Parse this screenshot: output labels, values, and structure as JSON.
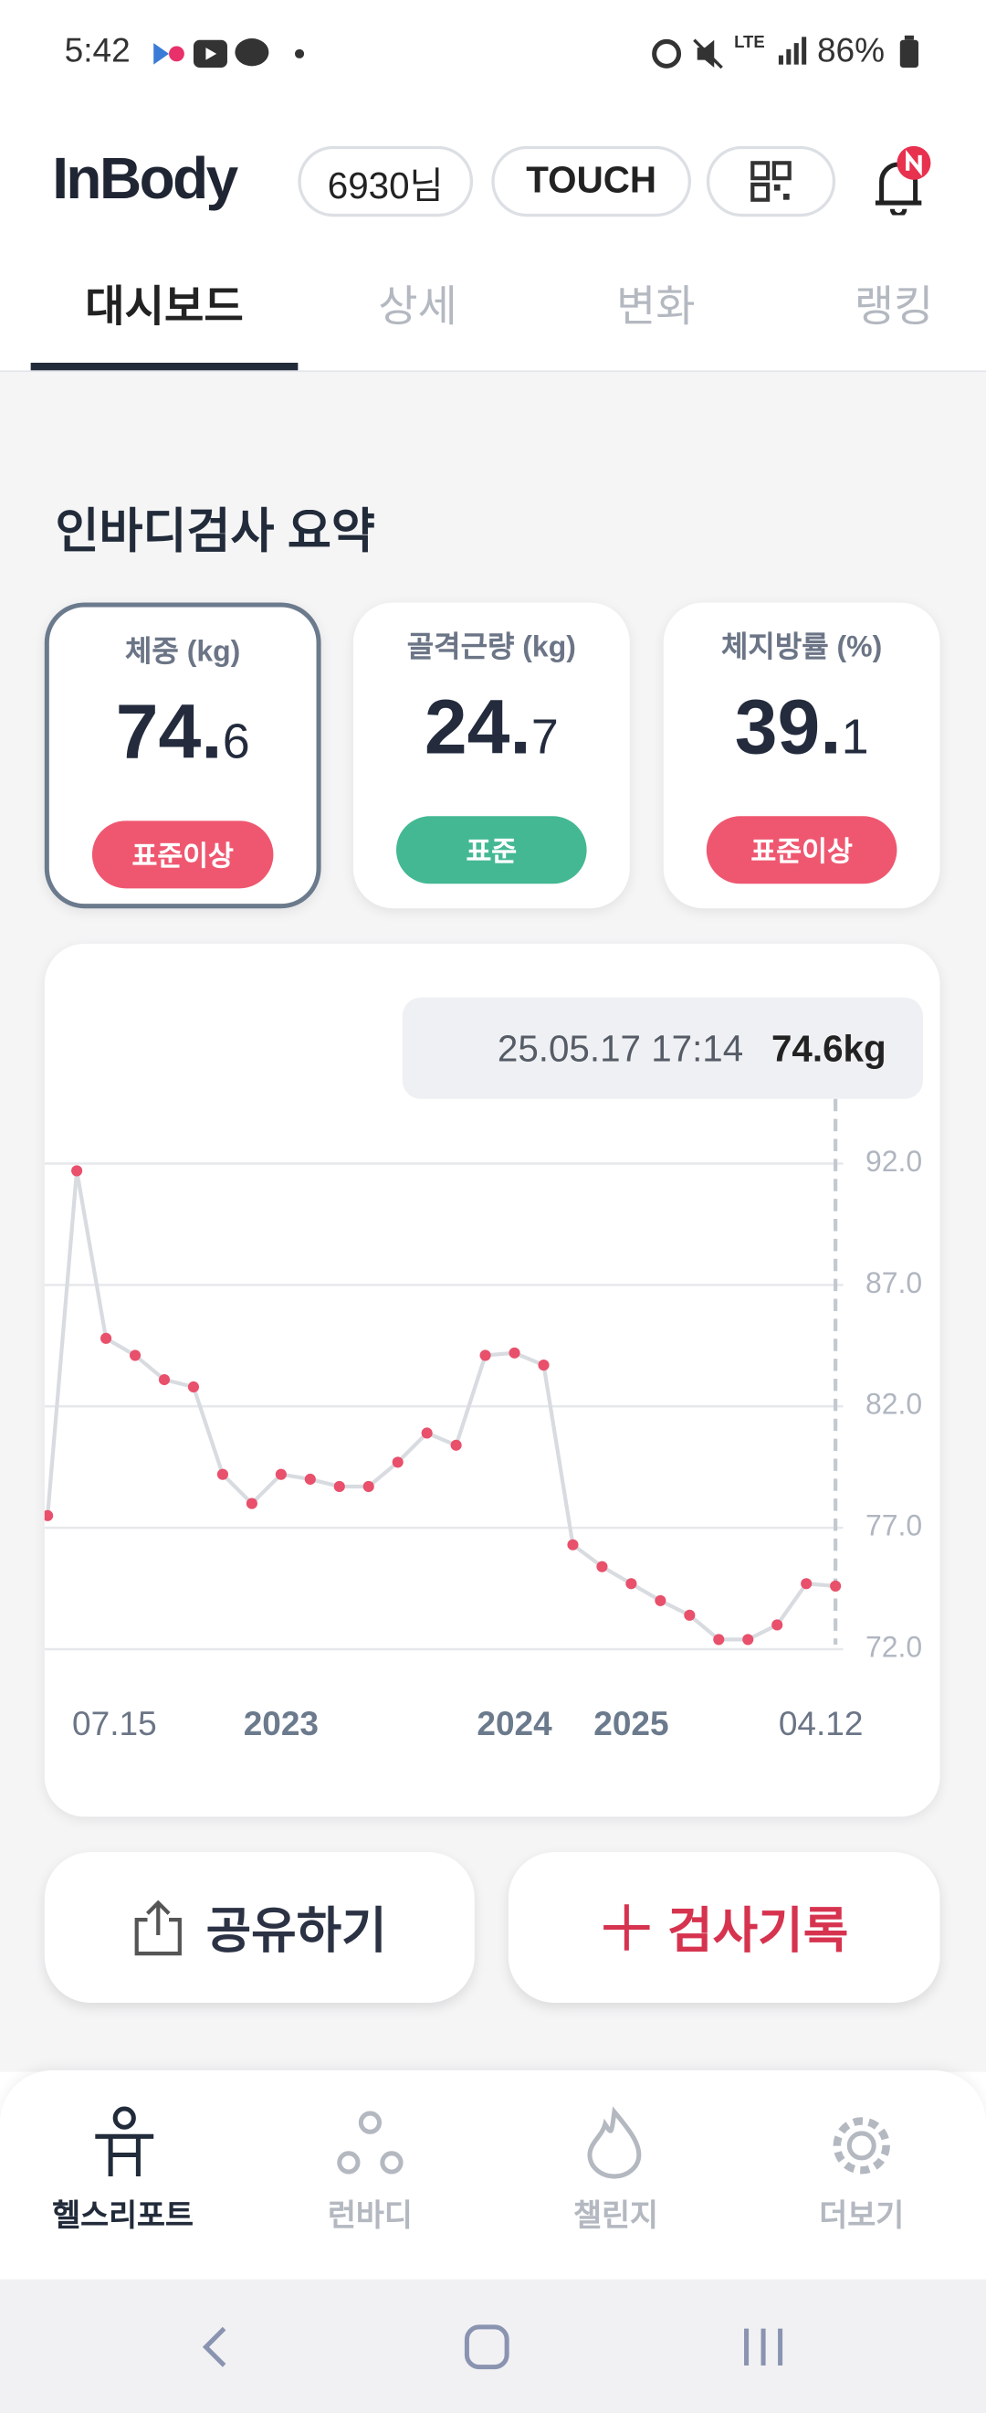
{
  "status_bar": {
    "time": "5:42",
    "network": "LTE",
    "battery": "86%"
  },
  "header": {
    "logo": "InBody",
    "user": "6930님",
    "touch": "TOUCH"
  },
  "tabs": [
    "대시보드",
    "상세",
    "변화",
    "랭킹"
  ],
  "section_title": "인바디검사 요약",
  "cards": [
    {
      "label": "체중 (kg)",
      "whole": "74.",
      "fraction": "6",
      "status": "표준이상"
    },
    {
      "label": "골격근량 (kg)",
      "whole": "24.",
      "fraction": "7",
      "status": "표준"
    },
    {
      "label": "체지방률 (%)",
      "whole": "39.",
      "fraction": "1",
      "status": "표준이상"
    }
  ],
  "chart_data": {
    "type": "line",
    "annotation": {
      "date": "25.05.17 17:14",
      "value": "74.6kg"
    },
    "categories": [
      "07.15",
      null,
      null,
      null,
      null,
      null,
      null,
      null,
      "2023",
      null,
      null,
      null,
      null,
      null,
      null,
      null,
      "2024",
      null,
      null,
      null,
      "2025",
      null,
      null,
      null,
      null,
      null,
      null,
      "04.12"
    ],
    "series": [
      {
        "color": "#e8506b",
        "values": [
          77.5,
          91.7,
          84.8,
          84.1,
          83.1,
          82.8,
          79.2,
          78.0,
          79.2,
          79.0,
          78.7,
          78.7,
          79.7,
          80.9,
          80.4,
          84.1,
          84.2,
          83.7,
          76.3,
          75.4,
          74.7,
          74.0,
          73.4,
          72.4,
          72.4,
          73.0,
          74.7,
          74.6
        ]
      }
    ],
    "ylim": [
      72,
      92
    ],
    "yticks": [
      {
        "value": 92,
        "label": "92.0"
      },
      {
        "value": 87,
        "label": "87.0"
      },
      {
        "value": 82,
        "label": "82.0"
      },
      {
        "value": 77,
        "label": "77.0"
      },
      {
        "value": 72,
        "label": "72.0"
      }
    ],
    "grid": true
  },
  "actions": {
    "share": "공유하기",
    "record": "검사기록"
  },
  "bottom_nav": [
    "헬스리포트",
    "런바디",
    "챌린지",
    "더보기"
  ]
}
